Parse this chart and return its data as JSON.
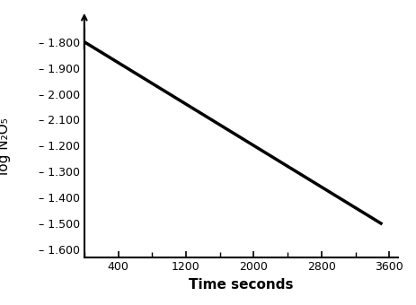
{
  "x_data": [
    0,
    3500
  ],
  "y_data": [
    8,
    1
  ],
  "x_ticks": [
    400,
    1200,
    2000,
    2800,
    3600
  ],
  "x_tick_labels": [
    "400",
    "1200",
    "2000",
    "2800",
    "3600"
  ],
  "y_ticks": [
    8,
    7,
    6,
    5,
    4,
    3,
    2,
    1,
    0
  ],
  "y_tick_labels": [
    "– 1.800",
    "– 1.900",
    "– 2.000",
    "– 2.100",
    "– 1.200",
    "– 1.300",
    "– 1.400",
    "– 1.500",
    "– 1.600"
  ],
  "ylim": [
    -0.3,
    8.5
  ],
  "xlim": [
    0,
    3700
  ],
  "ylabel": "log N₂O₅",
  "xlabel": "Time seconds",
  "line_color": "#000000",
  "line_width": 2.5,
  "bg_color": "#ffffff",
  "tick_font_size": 9,
  "label_font_size": 11
}
